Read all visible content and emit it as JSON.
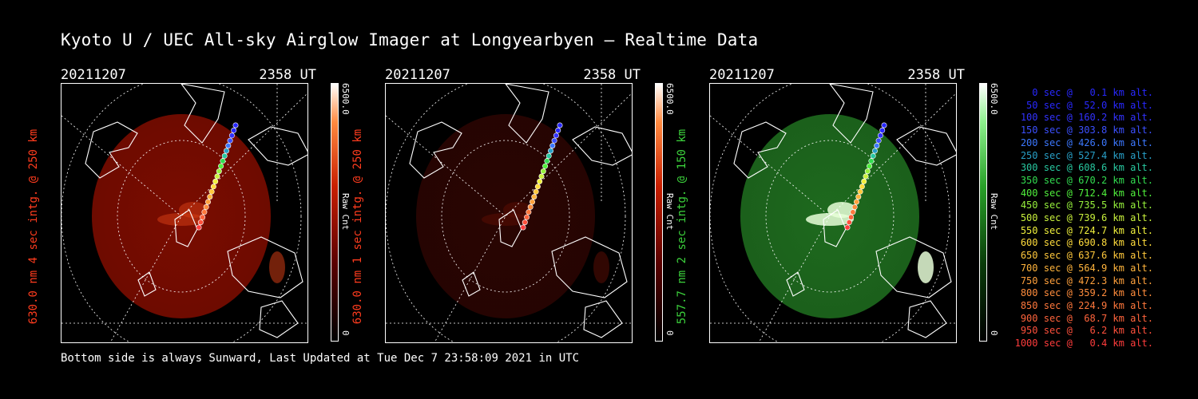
{
  "title": "Kyoto U / UEC All-sky Airglow Imager at Longyearbyen — Realtime Data",
  "footer": "Bottom side is always Sunward, Last Updated at Tue Dec  7 23:58:09 2021 in UTC",
  "colors": {
    "red": "#ff3c1e",
    "green": "#3cd23c",
    "bg": "#000000",
    "fg": "#ffffff"
  },
  "panels": [
    {
      "date": "20211207",
      "time": "2358 UT",
      "ylabel": "630.0 nm 4 sec intg. @ 250 km",
      "ylabel_color": "#ff3c1e",
      "cbar_max": "6500.0",
      "cbar_min": "0",
      "cbar_unit": "Raw Cnt"
    },
    {
      "date": "20211207",
      "time": "2358 UT",
      "ylabel": "630.0 nm 1 sec intg. @ 250 km",
      "ylabel_color": "#ff3c1e",
      "cbar_max": "6500.0",
      "cbar_min": "0",
      "cbar_unit": "Raw Cnt"
    },
    {
      "date": "20211207",
      "time": "2358 UT",
      "ylabel": "557.7 nm 2 sec intg. @ 150 km",
      "ylabel_color": "#3cd23c",
      "cbar_max": "6500.0",
      "cbar_min": "0",
      "cbar_unit": "Raw Cnt"
    }
  ],
  "legend": [
    {
      "text": "0 sec @   0.1 km alt.",
      "color": "#2828ff"
    },
    {
      "text": "50 sec @  52.0 km alt.",
      "color": "#2828ff"
    },
    {
      "text": "100 sec @ 160.2 km alt.",
      "color": "#3232ff"
    },
    {
      "text": "150 sec @ 303.8 km alt.",
      "color": "#3c50ff"
    },
    {
      "text": "200 sec @ 426.0 km alt.",
      "color": "#3c78ff"
    },
    {
      "text": "250 sec @ 527.4 km alt.",
      "color": "#28a0c8"
    },
    {
      "text": "300 sec @ 608.6 km alt.",
      "color": "#28c8a0"
    },
    {
      "text": "350 sec @ 670.2 km alt.",
      "color": "#32dc50"
    },
    {
      "text": "400 sec @ 712.4 km alt.",
      "color": "#50f03c"
    },
    {
      "text": "450 sec @ 735.5 km alt.",
      "color": "#96f03c"
    },
    {
      "text": "500 sec @ 739.6 km alt.",
      "color": "#c8f03c"
    },
    {
      "text": "550 sec @ 724.7 km alt.",
      "color": "#f0f03c"
    },
    {
      "text": "600 sec @ 690.8 km alt.",
      "color": "#ffdc3c"
    },
    {
      "text": "650 sec @ 637.6 km alt.",
      "color": "#ffc83c"
    },
    {
      "text": "700 sec @ 564.9 km alt.",
      "color": "#ffb43c"
    },
    {
      "text": "750 sec @ 472.3 km alt.",
      "color": "#ffa03c"
    },
    {
      "text": "800 sec @ 359.2 km alt.",
      "color": "#ff8c3c"
    },
    {
      "text": "850 sec @ 224.9 km alt.",
      "color": "#ff783c"
    },
    {
      "text": "900 sec @  68.7 km alt.",
      "color": "#ff643c"
    },
    {
      "text": "950 sec @   6.2 km alt.",
      "color": "#ff503c"
    },
    {
      "text": "1000 sec @   0.4 km alt.",
      "color": "#ff3c3c"
    }
  ]
}
